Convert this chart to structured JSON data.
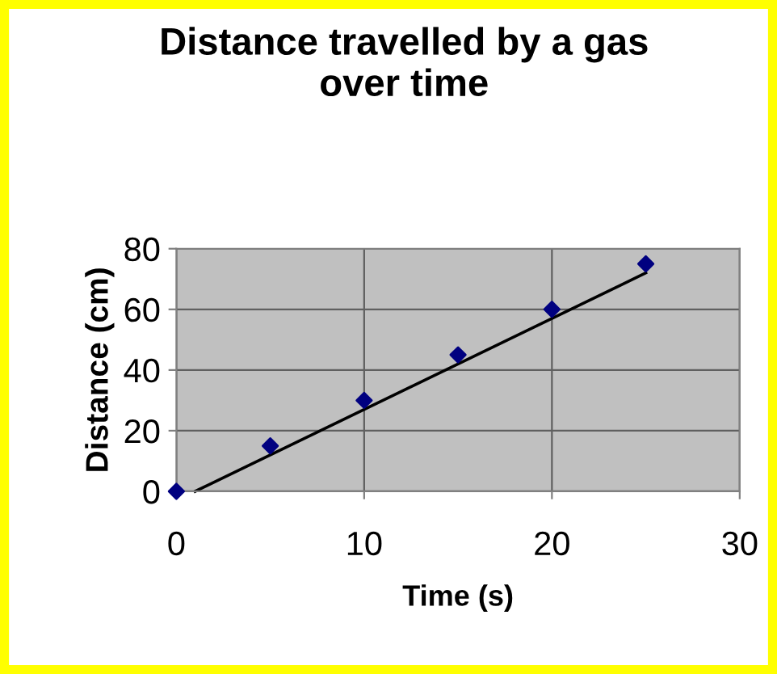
{
  "chart_data": {
    "type": "scatter",
    "title": "Distance travelled by a gas\nover time",
    "xlabel": "Time (s)",
    "ylabel": "Distance (cm)",
    "x": [
      0,
      5,
      10,
      15,
      20,
      25
    ],
    "series": [
      {
        "color": "#000080",
        "values": [
          0,
          15,
          30,
          45,
          60,
          75
        ],
        "marker": "diamond"
      },
      {
        "type": "line",
        "color": "#000000",
        "x": [
          1,
          25
        ],
        "values": [
          0,
          72
        ],
        "marker": "none",
        "line_style": "solid"
      }
    ],
    "xlim": [
      0,
      30
    ],
    "xticks": [
      0,
      10,
      20,
      30
    ],
    "ylim": [
      0,
      80
    ],
    "yticks": [
      0,
      20,
      40,
      60,
      80
    ],
    "grid": true,
    "legend": false
  }
}
